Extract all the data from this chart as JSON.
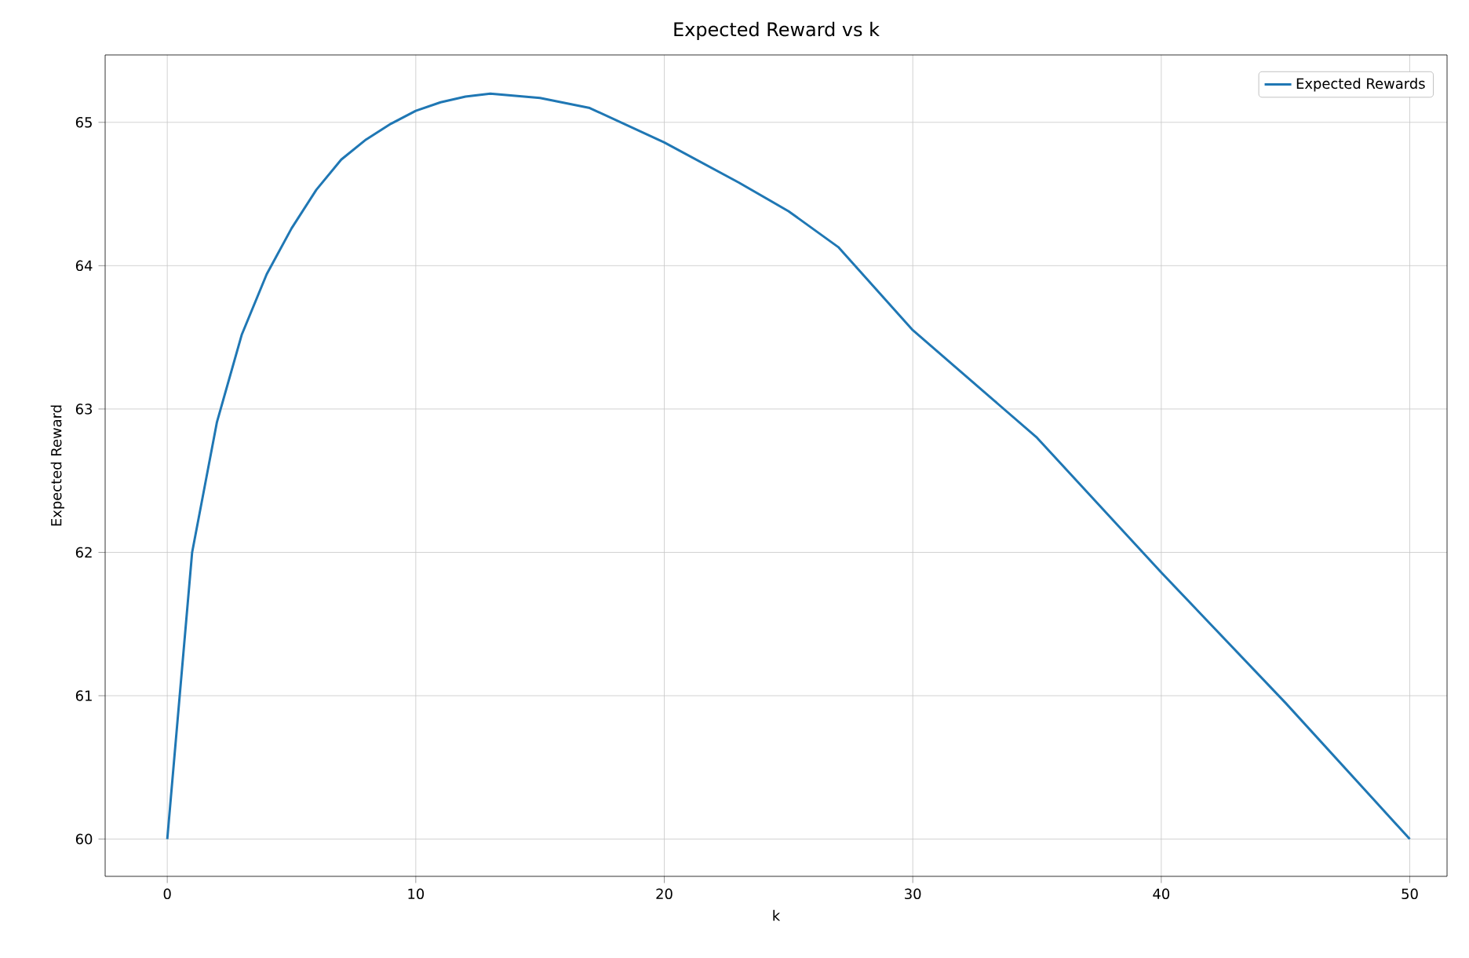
{
  "chart_data": {
    "type": "line",
    "title": "Expected Reward vs k",
    "xlabel": "k",
    "ylabel": "Expected Reward",
    "series": [
      {
        "name": "Expected Rewards",
        "color": "#1f77b4",
        "x": [
          0,
          1,
          2,
          3,
          4,
          5,
          6,
          7,
          8,
          9,
          10,
          11,
          12,
          13,
          15,
          17,
          20,
          23,
          25,
          27,
          30,
          35,
          40,
          45,
          50
        ],
        "values": [
          60.0,
          62.0,
          62.91,
          63.52,
          63.94,
          64.26,
          64.53,
          64.74,
          64.88,
          64.99,
          65.08,
          65.14,
          65.18,
          65.2,
          65.17,
          65.1,
          64.86,
          64.58,
          64.38,
          64.13,
          63.55,
          62.8,
          61.86,
          60.95,
          60.0
        ]
      }
    ],
    "xlim": [
      -2.5,
      51.5
    ],
    "ylim": [
      59.74,
      65.47
    ],
    "xticks": [
      0,
      10,
      20,
      30,
      40,
      50
    ],
    "yticks": [
      60,
      61,
      62,
      63,
      64,
      65
    ],
    "grid": true,
    "legend": "top right",
    "marker": "none",
    "line_style": "solid"
  }
}
